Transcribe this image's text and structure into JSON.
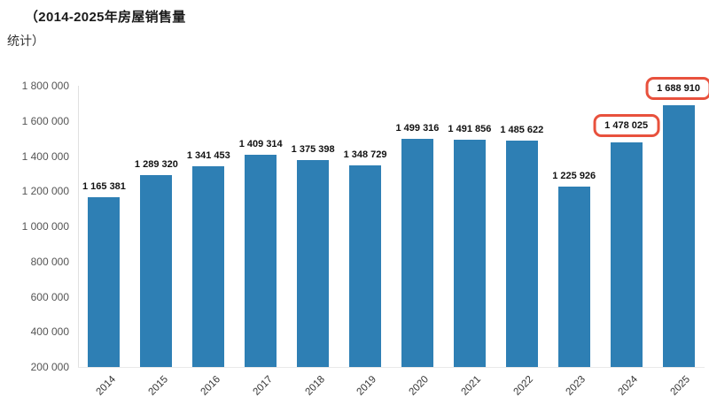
{
  "title": {
    "line1": "（2014-2025年房屋销售量",
    "line2": "统计）"
  },
  "chart_data": {
    "type": "bar",
    "title": "（2014-2025年房屋销售量 统计）",
    "xlabel": "",
    "ylabel": "",
    "categories": [
      "2014",
      "2015",
      "2016",
      "2017",
      "2018",
      "2019",
      "2020",
      "2021",
      "2022",
      "2023",
      "2024",
      "2025"
    ],
    "values": [
      1165381,
      1289320,
      1341453,
      1409314,
      1375398,
      1348729,
      1499316,
      1491856,
      1485622,
      1225926,
      1478025,
      1688910
    ],
    "value_labels": [
      "1 165 381",
      "1 289 320",
      "1 341 453",
      "1 409 314",
      "1 375 398",
      "1 348 729",
      "1 499 316",
      "1 491 856",
      "1 485 622",
      "1 225 926",
      "1 478 025",
      "1 688 910"
    ],
    "highlighted_categories": [
      "2024",
      "2025"
    ],
    "ylim": [
      200000,
      1800000
    ],
    "ytick_labels": [
      "1 800 000",
      "1 600 000",
      "1 400 000",
      "1 200 000",
      "1 000 000",
      "800 000",
      "600 000",
      "400 000",
      "200 000"
    ],
    "grid": false,
    "legend": false,
    "bar_color": "#2e7fb4",
    "highlight_box_color": "#e8513d",
    "axis_line_color": "#e0e0e0"
  }
}
